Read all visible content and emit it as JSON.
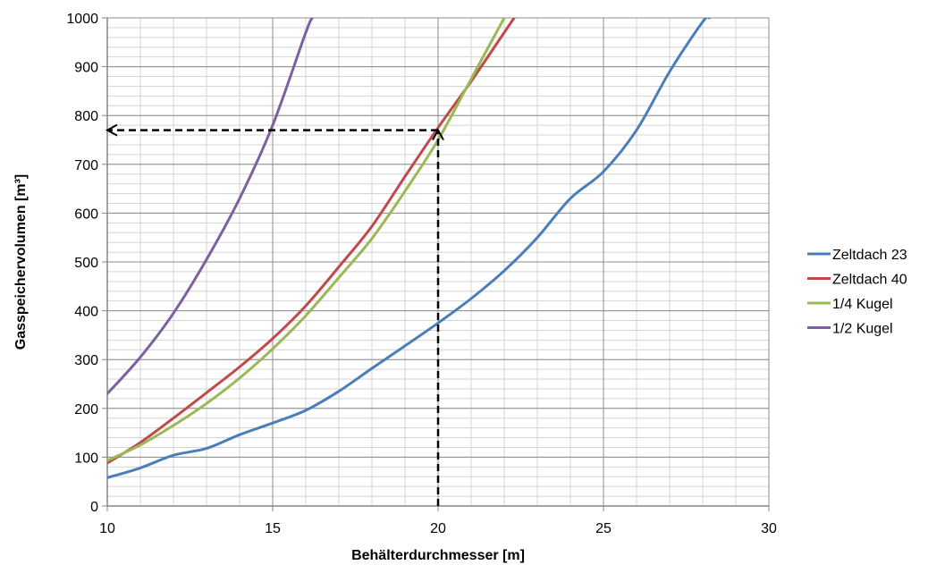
{
  "chart_data": {
    "type": "line",
    "title": "",
    "xlabel": "Behälterdurchmesser [m]",
    "ylabel": "Gasspeichervolumen [m³]",
    "xlim": [
      10,
      30
    ],
    "ylim": [
      0,
      1000
    ],
    "x_ticks": [
      10,
      15,
      20,
      25,
      30
    ],
    "y_ticks": [
      0,
      100,
      200,
      300,
      400,
      500,
      600,
      700,
      800,
      900,
      1000
    ],
    "minor_grid": true,
    "grid": true,
    "legend_position": "right",
    "series": [
      {
        "name": "Zeltdach 23",
        "color": "#4a7ebb",
        "points": [
          [
            10,
            58
          ],
          [
            11,
            78
          ],
          [
            12,
            104
          ],
          [
            13,
            118
          ],
          [
            14,
            146
          ],
          [
            15,
            170
          ],
          [
            16,
            196
          ],
          [
            17,
            235
          ],
          [
            18,
            282
          ],
          [
            19,
            328
          ],
          [
            20,
            375
          ],
          [
            21,
            425
          ],
          [
            22,
            482
          ],
          [
            23,
            550
          ],
          [
            24,
            630
          ],
          [
            25,
            685
          ],
          [
            26,
            770
          ],
          [
            27,
            890
          ],
          [
            28,
            992
          ],
          [
            28.2,
            1000
          ]
        ]
      },
      {
        "name": "Zeltdach 40",
        "color": "#be4b48",
        "points": [
          [
            10,
            88
          ],
          [
            11,
            130
          ],
          [
            12,
            180
          ],
          [
            13,
            232
          ],
          [
            14,
            285
          ],
          [
            15,
            343
          ],
          [
            16,
            410
          ],
          [
            17,
            490
          ],
          [
            18,
            573
          ],
          [
            19,
            675
          ],
          [
            20,
            775
          ],
          [
            21,
            870
          ],
          [
            22,
            970
          ],
          [
            22.3,
            1000
          ]
        ]
      },
      {
        "name": "1/4 Kugel",
        "color": "#98b954",
        "points": [
          [
            10,
            93
          ],
          [
            11,
            125
          ],
          [
            12,
            165
          ],
          [
            13,
            210
          ],
          [
            14,
            262
          ],
          [
            15,
            322
          ],
          [
            16,
            390
          ],
          [
            17,
            468
          ],
          [
            18,
            548
          ],
          [
            19,
            645
          ],
          [
            20,
            750
          ],
          [
            21,
            875
          ],
          [
            22,
            1000
          ]
        ]
      },
      {
        "name": "1/2 Kugel",
        "color": "#7d60a0",
        "points": [
          [
            10,
            230
          ],
          [
            11,
            305
          ],
          [
            12,
            395
          ],
          [
            13,
            505
          ],
          [
            14,
            630
          ],
          [
            15,
            780
          ],
          [
            16,
            970
          ],
          [
            16.2,
            1000
          ]
        ]
      }
    ],
    "annotations": [
      {
        "type": "dashed-arrow",
        "description": "vertical dashed arrow from x-axis at 20 m up to the Zeltdach 40 curve",
        "from": [
          20,
          0
        ],
        "to": [
          20,
          770
        ]
      },
      {
        "type": "dashed-arrow",
        "description": "horizontal dashed arrow from intersection to y-axis",
        "from": [
          20,
          770
        ],
        "to": [
          10,
          770
        ]
      }
    ]
  }
}
